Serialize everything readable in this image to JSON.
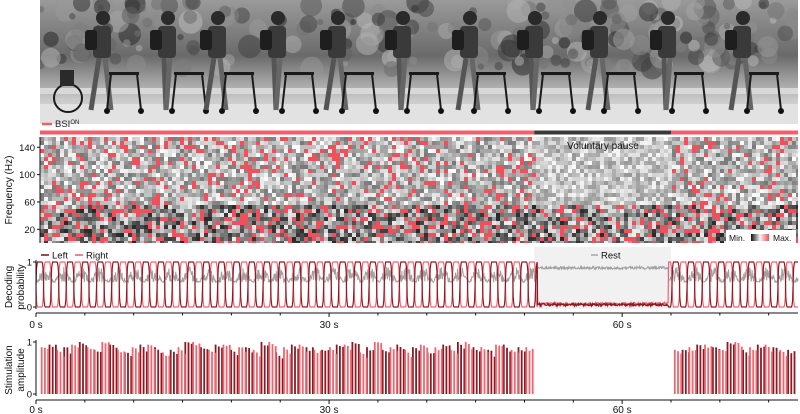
{
  "photo": {
    "description_icon": "walking-sequence-photo",
    "strip_colors": [
      "#5a5a5a",
      "#8a8a8a",
      "#c8c8c8",
      "#e6e6e6"
    ]
  },
  "status_bar": {
    "label": "BSI",
    "label_sup": "ON",
    "color_on": "#f0606a",
    "color_pause": "#3a3a3a",
    "pause_range_s": [
      51,
      65
    ]
  },
  "spectrogram": {
    "ylabel": "Frequency (Hz)",
    "yticks": [
      20,
      60,
      100,
      140
    ],
    "ylim": [
      0,
      155
    ],
    "annotation": "Voluntary pause",
    "colorbar": {
      "min_label": "Min.",
      "max_label": "Max."
    },
    "colors": {
      "high": "#f0505a",
      "dark": "#111111",
      "light": "#f2f2f2"
    }
  },
  "decoding": {
    "ylabel_line1": "Decoding",
    "ylabel_line2": "probability",
    "yticks": [
      0,
      1
    ],
    "legend": [
      {
        "name": "Left",
        "color": "#8a1a24"
      },
      {
        "name": "Right",
        "color": "#ee6670"
      }
    ],
    "rest_label": "Rest",
    "rest_color": "#a0a0a0",
    "rest_range_s": [
      51,
      65
    ]
  },
  "stimulation": {
    "ylabel_line1": "Stimulation",
    "ylabel_line2": "amplitude",
    "yticks": [
      0,
      1
    ]
  },
  "time_axis": {
    "ticks": [
      0,
      30,
      60
    ],
    "tick_labels": [
      "0 s",
      "30 s",
      "60 s"
    ],
    "xlim": [
      0,
      78
    ]
  },
  "chart_data": [
    {
      "type": "heatmap",
      "title": "",
      "ylabel": "Frequency (Hz)",
      "ylim": [
        0,
        155
      ],
      "x_range_s": [
        0,
        78
      ],
      "legend": "bottom-right"
    },
    {
      "type": "line",
      "title": "",
      "ylabel": "Decoding probability",
      "xlim": [
        0,
        78
      ],
      "ylim": [
        0,
        1
      ],
      "step_period_s": 1.55,
      "series": [
        {
          "name": "Left",
          "pattern": "alternating gait cycles 0–1, low during rest 51–65 s"
        },
        {
          "name": "Right",
          "pattern": "alternating gait cycles 0–1, offset half cycle, low during rest"
        },
        {
          "name": "Rest",
          "pattern": "~0.85 from 51 s to 65 s, ~0.6 otherwise"
        }
      ]
    },
    {
      "type": "bar",
      "title": "",
      "ylabel": "Stimulation amplitude",
      "xlim": [
        0,
        78
      ],
      "ylim": [
        0,
        1
      ],
      "series": [
        {
          "name": "Left",
          "t_s": [
            1.6,
            3.1,
            4.7,
            6.2,
            7.8,
            9.3,
            10.9,
            12.4,
            14.0,
            15.5,
            17.1,
            18.6,
            20.2,
            21.7,
            23.3,
            24.8,
            26.4,
            27.9,
            29.5,
            31.0,
            32.6,
            34.1,
            35.7,
            37.2,
            38.8,
            40.3,
            41.9,
            43.4,
            45.0,
            46.5,
            48.1,
            49.6,
            66.4,
            67.9,
            69.5,
            71.0,
            72.6,
            74.1,
            75.7,
            77.2
          ],
          "amplitude": [
            0.95,
            0.9,
            1.0,
            0.85,
            0.95,
            0.8,
            0.95,
            0.9,
            0.85,
            1.0,
            0.9,
            0.95,
            0.85,
            0.9,
            1.0,
            0.8,
            0.95,
            0.9,
            0.85,
            0.95,
            1.0,
            0.9,
            0.85,
            0.95,
            0.9,
            0.8,
            0.95,
            1.0,
            0.9,
            0.85,
            0.95,
            0.9,
            0.85,
            0.95,
            0.9,
            1.0,
            0.85,
            0.95,
            0.9,
            0.85
          ]
        },
        {
          "name": "Right",
          "t_s": [
            0.8,
            2.4,
            3.9,
            5.5,
            7.0,
            8.6,
            10.1,
            11.7,
            13.2,
            14.8,
            16.3,
            17.9,
            19.4,
            21.0,
            22.5,
            24.1,
            25.6,
            27.2,
            28.7,
            30.3,
            31.8,
            33.4,
            34.9,
            36.5,
            38.0,
            39.6,
            41.1,
            42.7,
            44.2,
            45.8,
            47.3,
            48.9,
            50.4,
            65.6,
            67.1,
            68.7,
            70.2,
            71.8,
            73.3,
            74.9,
            76.4
          ],
          "amplitude": [
            0.9,
            0.85,
            0.95,
            0.9,
            1.0,
            0.85,
            0.9,
            0.95,
            0.8,
            0.9,
            1.0,
            0.85,
            0.95,
            0.9,
            0.85,
            1.0,
            0.9,
            0.95,
            0.85,
            0.9,
            0.95,
            0.8,
            1.0,
            0.9,
            0.85,
            0.95,
            0.9,
            0.85,
            1.0,
            0.9,
            0.95,
            0.85,
            0.9,
            0.85,
            0.9,
            0.95,
            0.85,
            1.0,
            0.9,
            0.95,
            0.85
          ]
        }
      ]
    }
  ]
}
